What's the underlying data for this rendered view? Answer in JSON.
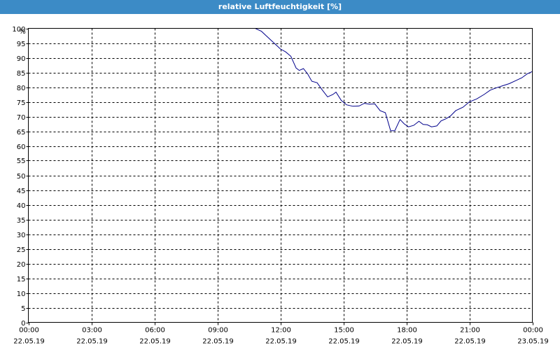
{
  "window": {
    "title": "relative Luftfeuchtigkeit [%]"
  },
  "chart_data": {
    "type": "line",
    "title": "relative Luftfeuchtigkeit [%]",
    "ylabel": "%",
    "xlabel": "",
    "ylim": [
      0,
      100
    ],
    "ytick_step": 5,
    "grid": true,
    "line_color": "#00008b",
    "x_ticks": [
      {
        "time": "00:00",
        "date": "22.05.19",
        "hour": 0
      },
      {
        "time": "03:00",
        "date": "22.05.19",
        "hour": 3
      },
      {
        "time": "06:00",
        "date": "22.05.19",
        "hour": 6
      },
      {
        "time": "09:00",
        "date": "22.05.19",
        "hour": 9
      },
      {
        "time": "12:00",
        "date": "22.05.19",
        "hour": 12
      },
      {
        "time": "15:00",
        "date": "22.05.19",
        "hour": 15
      },
      {
        "time": "18:00",
        "date": "22.05.19",
        "hour": 18
      },
      {
        "time": "21:00",
        "date": "22.05.19",
        "hour": 21
      },
      {
        "time": "00:00",
        "date": "23.05.19",
        "hour": 24
      }
    ],
    "series": [
      {
        "points": [
          [
            0.0,
            100
          ],
          [
            10.8,
            100
          ],
          [
            11.1,
            99
          ],
          [
            11.4,
            97
          ],
          [
            11.7,
            95
          ],
          [
            12.0,
            93
          ],
          [
            12.25,
            92
          ],
          [
            12.5,
            90.5
          ],
          [
            12.75,
            86.5
          ],
          [
            12.9,
            85.7
          ],
          [
            13.1,
            86.3
          ],
          [
            13.3,
            84.5
          ],
          [
            13.5,
            82
          ],
          [
            13.75,
            81.5
          ],
          [
            14.0,
            79
          ],
          [
            14.25,
            76.7
          ],
          [
            14.5,
            77.5
          ],
          [
            14.65,
            78.3
          ],
          [
            14.9,
            75.5
          ],
          [
            15.15,
            74
          ],
          [
            15.45,
            73.5
          ],
          [
            15.75,
            73.6
          ],
          [
            16.0,
            74.5
          ],
          [
            16.25,
            74.2
          ],
          [
            16.5,
            74.3
          ],
          [
            16.75,
            72
          ],
          [
            17.0,
            71.3
          ],
          [
            17.25,
            65.2
          ],
          [
            17.45,
            65.2
          ],
          [
            17.7,
            69
          ],
          [
            17.9,
            67.5
          ],
          [
            18.1,
            66.5
          ],
          [
            18.35,
            67
          ],
          [
            18.6,
            68.4
          ],
          [
            18.8,
            67.3
          ],
          [
            19.0,
            67.2
          ],
          [
            19.2,
            66.5
          ],
          [
            19.45,
            66.8
          ],
          [
            19.65,
            68.5
          ],
          [
            19.9,
            69.3
          ],
          [
            20.1,
            70.2
          ],
          [
            20.35,
            72
          ],
          [
            20.7,
            73.2
          ],
          [
            21.0,
            75
          ],
          [
            21.35,
            76
          ],
          [
            21.7,
            77.5
          ],
          [
            22.0,
            79
          ],
          [
            22.3,
            79.8
          ],
          [
            22.6,
            80.5
          ],
          [
            22.9,
            81.2
          ],
          [
            23.2,
            82.2
          ],
          [
            23.5,
            83.2
          ],
          [
            23.75,
            84.5
          ],
          [
            24.0,
            85.3
          ]
        ]
      }
    ]
  }
}
